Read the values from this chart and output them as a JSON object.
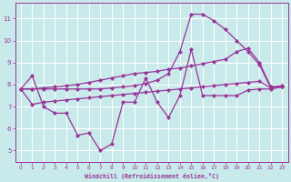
{
  "xlabel": "Windchill (Refroidissement éolien,°C)",
  "background_color": "#c8eaea",
  "grid_color": "#ffffff",
  "line_color": "#993399",
  "xlim": [
    -0.5,
    23.5
  ],
  "ylim": [
    4.5,
    11.7
  ],
  "xticks": [
    0,
    1,
    2,
    3,
    4,
    5,
    6,
    7,
    8,
    9,
    10,
    11,
    12,
    13,
    14,
    15,
    16,
    17,
    18,
    19,
    20,
    21,
    22,
    23
  ],
  "yticks": [
    5,
    6,
    7,
    8,
    9,
    10,
    11
  ],
  "line1_x": [
    0,
    1,
    2,
    3,
    4,
    5,
    6,
    7,
    8,
    9,
    10,
    11,
    12,
    13,
    14,
    15,
    16,
    17,
    18,
    19,
    20,
    21,
    22,
    23
  ],
  "line1_y": [
    7.8,
    8.4,
    7.0,
    6.7,
    6.7,
    5.7,
    5.8,
    5.0,
    5.3,
    7.2,
    7.2,
    8.3,
    7.2,
    6.5,
    7.5,
    9.6,
    7.5,
    7.5,
    7.5,
    7.5,
    7.75,
    7.8,
    7.8,
    7.9
  ],
  "line2_x": [
    0,
    1,
    2,
    3,
    4,
    5,
    6,
    7,
    8,
    9,
    10,
    11,
    12,
    13,
    14,
    15,
    16,
    17,
    18,
    19,
    20,
    21,
    22,
    23
  ],
  "line2_y": [
    7.8,
    7.1,
    7.2,
    7.25,
    7.3,
    7.35,
    7.4,
    7.45,
    7.5,
    7.55,
    7.6,
    7.65,
    7.7,
    7.75,
    7.8,
    7.85,
    7.9,
    7.95,
    8.0,
    8.05,
    8.1,
    8.15,
    7.85,
    7.9
  ],
  "line3_x": [
    0,
    1,
    2,
    3,
    4,
    5,
    6,
    7,
    8,
    9,
    10,
    11,
    12,
    13,
    14,
    15,
    16,
    17,
    18,
    19,
    20,
    21,
    22,
    23
  ],
  "line3_y": [
    7.8,
    7.8,
    7.85,
    7.9,
    7.95,
    8.0,
    8.1,
    8.2,
    8.3,
    8.4,
    8.5,
    8.55,
    8.6,
    8.7,
    8.75,
    8.85,
    8.95,
    9.05,
    9.15,
    9.5,
    9.65,
    9.0,
    7.9,
    7.95
  ],
  "line4_x": [
    0,
    1,
    2,
    3,
    4,
    5,
    6,
    7,
    8,
    9,
    10,
    11,
    12,
    13,
    14,
    15,
    16,
    17,
    18,
    19,
    20,
    21,
    22,
    23
  ],
  "line4_y": [
    7.8,
    7.8,
    7.8,
    7.8,
    7.8,
    7.8,
    7.8,
    7.8,
    7.85,
    7.9,
    7.95,
    8.05,
    8.2,
    8.5,
    9.5,
    11.2,
    11.2,
    10.9,
    10.5,
    10.0,
    9.5,
    8.9,
    7.85,
    7.9
  ]
}
